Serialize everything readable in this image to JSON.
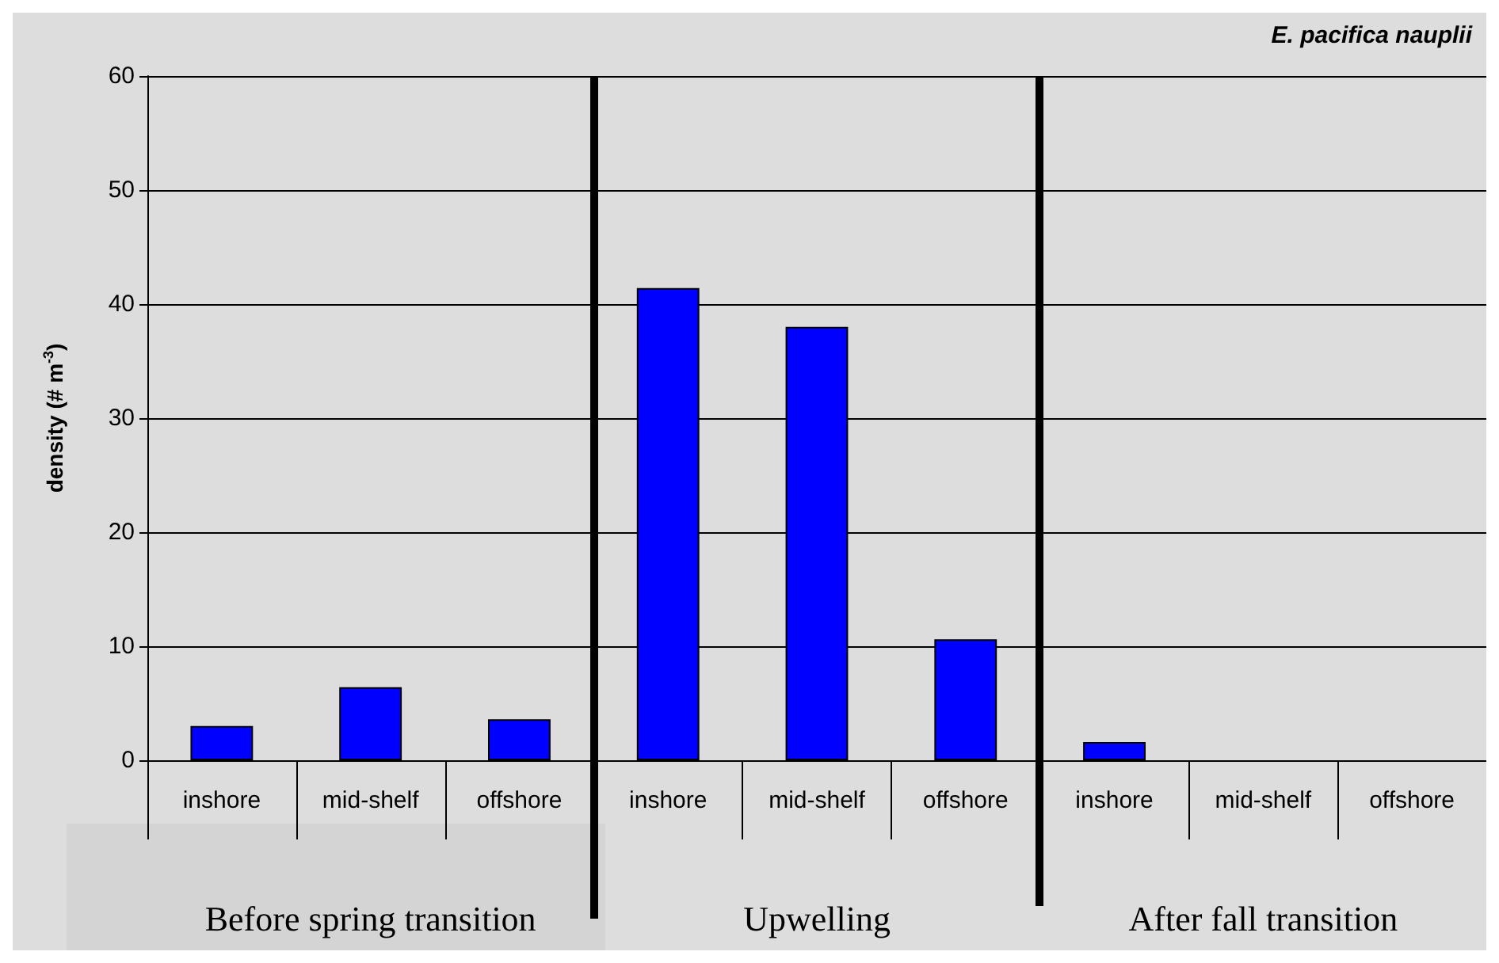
{
  "chart_data": {
    "type": "bar",
    "title": "E. pacifica nauplii",
    "ylabel": "density (# m$^{-3}$)",
    "categories": [
      "inshore",
      "mid-shelf",
      "offshore",
      "inshore",
      "mid-shelf",
      "offshore",
      "inshore",
      "mid-shelf",
      "offshore"
    ],
    "values": [
      3,
      6.4,
      3.6,
      41.4,
      38,
      10.6,
      1.6,
      0,
      0
    ],
    "color": "#0000ff",
    "ylim": [
      0,
      60
    ],
    "yticks": [
      0,
      10,
      20,
      30,
      40,
      50,
      60
    ],
    "grid": "y",
    "annotations": [
      "Before spring transition",
      "Upwelling",
      "After fall transition"
    ]
  }
}
